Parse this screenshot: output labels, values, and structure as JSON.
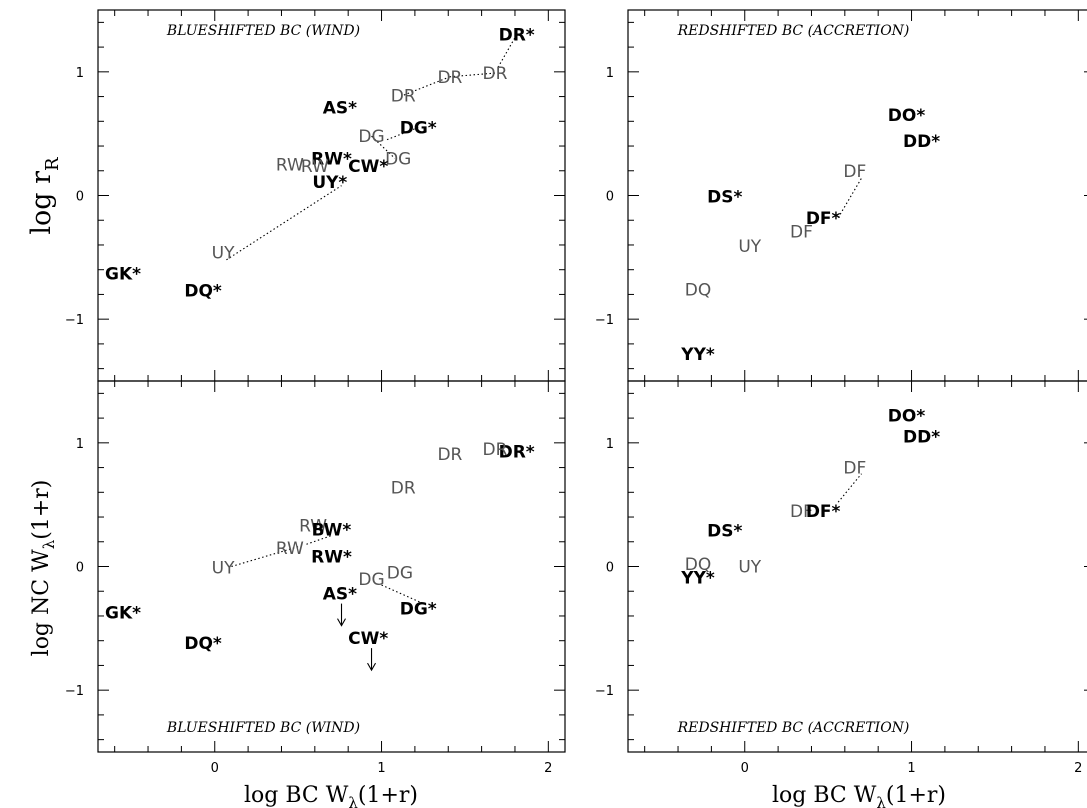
{
  "axis_labels": {
    "left_ylabel_top": "log r",
    "left_ylabel_top_sub": "R",
    "left_ylabel_bottom": "log NC W",
    "left_ylabel_bottom_sub": "λ",
    "left_ylabel_bottom_tail": "(1+r)",
    "xlabel": "log BC W",
    "xlabel_sub": "λ",
    "xlabel_tail": "(1+r)"
  },
  "chart_data": [
    {
      "type": "scatter",
      "panel": "top-left",
      "title": "BLUESHIFTED BC (WIND)",
      "title_position": "top",
      "xlim": [
        -0.7,
        2.1
      ],
      "ylim": [
        -1.5,
        1.5
      ],
      "xticks": [
        "0",
        "1",
        "2"
      ],
      "yticks": [
        "-1",
        "0",
        "1"
      ],
      "points": [
        {
          "label": "DR*",
          "x": 1.81,
          "y": 1.3,
          "style": "bold"
        },
        {
          "label": "DR",
          "x": 1.68,
          "y": 0.99,
          "style": "light"
        },
        {
          "label": "DR",
          "x": 1.41,
          "y": 0.96,
          "style": "light"
        },
        {
          "label": "DR",
          "x": 1.13,
          "y": 0.81,
          "style": "light"
        },
        {
          "label": "AS*",
          "x": 0.75,
          "y": 0.71,
          "style": "bold"
        },
        {
          "label": "DG*",
          "x": 1.22,
          "y": 0.55,
          "style": "bold"
        },
        {
          "label": "DG",
          "x": 0.94,
          "y": 0.48,
          "style": "light"
        },
        {
          "label": "DG",
          "x": 1.1,
          "y": 0.3,
          "style": "light"
        },
        {
          "label": "RW*",
          "x": 0.7,
          "y": 0.3,
          "style": "bold"
        },
        {
          "label": "RW",
          "x": 0.45,
          "y": 0.25,
          "style": "light"
        },
        {
          "label": "RW",
          "x": 0.6,
          "y": 0.24,
          "style": "light"
        },
        {
          "label": "CW*",
          "x": 0.92,
          "y": 0.24,
          "style": "bold"
        },
        {
          "label": "UY*",
          "x": 0.69,
          "y": 0.11,
          "style": "bold"
        },
        {
          "label": "UY",
          "x": 0.05,
          "y": -0.46,
          "style": "light"
        },
        {
          "label": "GK*",
          "x": -0.55,
          "y": -0.63,
          "style": "bold"
        },
        {
          "label": "DQ*",
          "x": -0.07,
          "y": -0.77,
          "style": "bold"
        }
      ],
      "connectors": [
        [
          1.81,
          1.3,
          1.7,
          1.04
        ],
        [
          1.68,
          0.99,
          1.41,
          0.96
        ],
        [
          1.41,
          0.96,
          1.13,
          0.81
        ],
        [
          1.22,
          0.55,
          1.03,
          0.45
        ],
        [
          0.94,
          0.48,
          1.08,
          0.3
        ],
        [
          0.07,
          -0.52,
          0.76,
          0.08
        ]
      ]
    },
    {
      "type": "scatter",
      "panel": "top-right",
      "title": "REDSHIFTED BC (ACCRETION)",
      "title_position": "top",
      "xlim": [
        -0.7,
        2.1
      ],
      "ylim": [
        -1.5,
        1.5
      ],
      "xticks": [
        "0",
        "1",
        "2"
      ],
      "yticks": [
        "-1",
        "0",
        "1"
      ],
      "points": [
        {
          "label": "DO*",
          "x": 0.97,
          "y": 0.65,
          "style": "bold"
        },
        {
          "label": "DD*",
          "x": 1.06,
          "y": 0.44,
          "style": "bold"
        },
        {
          "label": "DF",
          "x": 0.66,
          "y": 0.2,
          "style": "light"
        },
        {
          "label": "DS*",
          "x": -0.12,
          "y": -0.01,
          "style": "bold"
        },
        {
          "label": "DF*",
          "x": 0.47,
          "y": -0.18,
          "style": "bold"
        },
        {
          "label": "DF",
          "x": 0.34,
          "y": -0.29,
          "style": "light"
        },
        {
          "label": "UY",
          "x": 0.03,
          "y": -0.41,
          "style": "light"
        },
        {
          "label": "DQ",
          "x": -0.28,
          "y": -0.76,
          "style": "light"
        },
        {
          "label": "YY*",
          "x": -0.28,
          "y": -1.28,
          "style": "bold"
        }
      ],
      "connectors": [
        [
          0.56,
          -0.18,
          0.7,
          0.14
        ]
      ]
    },
    {
      "type": "scatter",
      "panel": "bottom-left",
      "title": "BLUESHIFTED BC (WIND)",
      "title_position": "bottom",
      "xlim": [
        -0.7,
        2.1
      ],
      "ylim": [
        -1.5,
        1.5
      ],
      "xticks": [
        "0",
        "1",
        "2"
      ],
      "yticks": [
        "-1",
        "0",
        "1"
      ],
      "points": [
        {
          "label": "DR*",
          "x": 1.81,
          "y": 0.93,
          "style": "bold"
        },
        {
          "label": "DR",
          "x": 1.68,
          "y": 0.95,
          "style": "light"
        },
        {
          "label": "DR",
          "x": 1.41,
          "y": 0.91,
          "style": "light"
        },
        {
          "label": "DR",
          "x": 1.13,
          "y": 0.64,
          "style": "light"
        },
        {
          "label": "RW",
          "x": 0.59,
          "y": 0.33,
          "style": "light"
        },
        {
          "label": "BW*",
          "x": 0.7,
          "y": 0.3,
          "style": "bold"
        },
        {
          "label": "RW",
          "x": 0.45,
          "y": 0.15,
          "style": "light"
        },
        {
          "label": "RW*",
          "x": 0.7,
          "y": 0.08,
          "style": "bold"
        },
        {
          "label": "UY",
          "x": 0.05,
          "y": -0.01,
          "style": "light"
        },
        {
          "label": "DG",
          "x": 0.94,
          "y": -0.1,
          "style": "light"
        },
        {
          "label": "DG",
          "x": 1.11,
          "y": -0.05,
          "style": "light"
        },
        {
          "label": "AS*",
          "x": 0.75,
          "y": -0.22,
          "style": "bold"
        },
        {
          "label": "DG*",
          "x": 1.22,
          "y": -0.34,
          "style": "bold"
        },
        {
          "label": "GK*",
          "x": -0.55,
          "y": -0.37,
          "style": "bold"
        },
        {
          "label": "DQ*",
          "x": -0.07,
          "y": -0.62,
          "style": "bold"
        },
        {
          "label": "CW*",
          "x": 0.92,
          "y": -0.58,
          "style": "bold"
        }
      ],
      "connectors": [
        [
          0.1,
          0.0,
          0.5,
          0.16
        ],
        [
          0.55,
          0.18,
          0.7,
          0.25
        ],
        [
          1.0,
          -0.15,
          1.25,
          -0.3
        ]
      ],
      "upper_limits": [
        [
          0.76,
          -0.3
        ],
        [
          0.94,
          -0.66
        ]
      ]
    },
    {
      "type": "scatter",
      "panel": "bottom-right",
      "title": "REDSHIFTED BC (ACCRETION)",
      "title_position": "bottom",
      "xlim": [
        -0.7,
        2.1
      ],
      "ylim": [
        -1.5,
        1.5
      ],
      "xticks": [
        "0",
        "1",
        "2"
      ],
      "yticks": [
        "-1",
        "0",
        "1"
      ],
      "points": [
        {
          "label": "DO*",
          "x": 0.97,
          "y": 1.22,
          "style": "bold"
        },
        {
          "label": "DD*",
          "x": 1.06,
          "y": 1.05,
          "style": "bold"
        },
        {
          "label": "DF",
          "x": 0.66,
          "y": 0.8,
          "style": "light"
        },
        {
          "label": "DF",
          "x": 0.34,
          "y": 0.45,
          "style": "light"
        },
        {
          "label": "DF*",
          "x": 0.47,
          "y": 0.45,
          "style": "bold"
        },
        {
          "label": "DS*",
          "x": -0.12,
          "y": 0.29,
          "style": "bold"
        },
        {
          "label": "DQ",
          "x": -0.28,
          "y": 0.02,
          "style": "light"
        },
        {
          "label": "UY",
          "x": 0.03,
          "y": 0.0,
          "style": "light"
        },
        {
          "label": "YY*",
          "x": -0.28,
          "y": -0.09,
          "style": "bold"
        }
      ],
      "connectors": [
        [
          0.56,
          0.52,
          0.7,
          0.75
        ]
      ]
    }
  ]
}
